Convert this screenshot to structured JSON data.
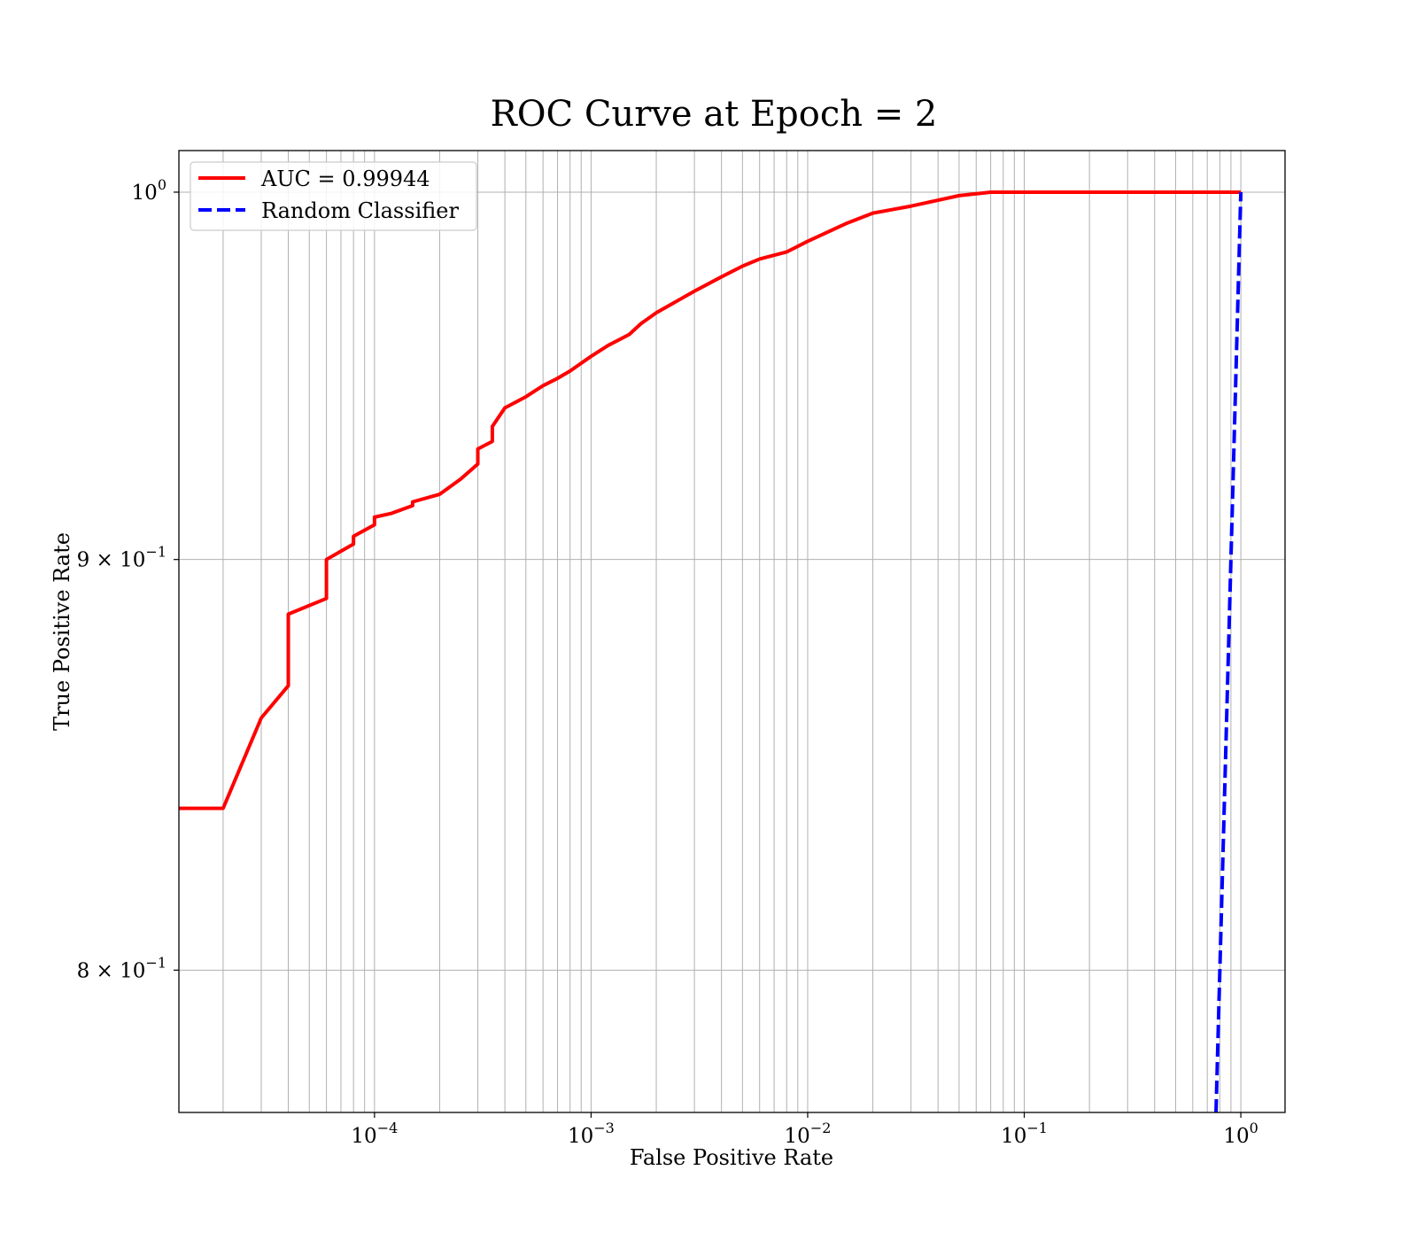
{
  "chart_data": {
    "type": "line",
    "title": "ROC Curve at Epoch = 2",
    "xlabel": "False Positive Rate",
    "ylabel": "True Positive Rate",
    "xscale": "log",
    "yscale": "log",
    "xlim": [
      1.25e-05,
      1.6
    ],
    "ylim": [
      0.768,
      1.012
    ],
    "grid": true,
    "legend_position": "upper-left",
    "x_ticks": [
      {
        "value": 0.0001,
        "base": "10",
        "exp": "−4"
      },
      {
        "value": 0.001,
        "base": "10",
        "exp": "−3"
      },
      {
        "value": 0.01,
        "base": "10",
        "exp": "−2"
      },
      {
        "value": 0.1,
        "base": "10",
        "exp": "−1"
      },
      {
        "value": 1,
        "base": "10",
        "exp": "0"
      }
    ],
    "y_ticks": [
      {
        "value": 0.8,
        "base": "8 × 10",
        "exp": "−1"
      },
      {
        "value": 0.9,
        "base": "9 × 10",
        "exp": "−1"
      },
      {
        "value": 1.0,
        "base": "10",
        "exp": "0"
      }
    ],
    "series": [
      {
        "name": "AUC = 0.99944",
        "color": "#ff0000",
        "style": "solid",
        "x": [
          1.25e-05,
          2e-05,
          3e-05,
          4e-05,
          4e-05,
          6e-05,
          6e-05,
          8e-05,
          8e-05,
          0.0001,
          0.0001,
          0.00012,
          0.00015,
          0.00015,
          0.0002,
          0.00025,
          0.0003,
          0.0003,
          0.00035,
          0.00035,
          0.0004,
          0.0005,
          0.0006,
          0.0007,
          0.0008,
          0.001,
          0.0012,
          0.0015,
          0.0017,
          0.002,
          0.003,
          0.004,
          0.005,
          0.006,
          0.008,
          0.01,
          0.015,
          0.02,
          0.03,
          0.05,
          0.07,
          0.1,
          0.2,
          0.5,
          1.0
        ],
        "y": [
          0.838,
          0.838,
          0.86,
          0.868,
          0.886,
          0.89,
          0.9,
          0.904,
          0.906,
          0.909,
          0.911,
          0.912,
          0.914,
          0.915,
          0.917,
          0.921,
          0.925,
          0.929,
          0.931,
          0.935,
          0.94,
          0.943,
          0.946,
          0.948,
          0.95,
          0.954,
          0.957,
          0.96,
          0.963,
          0.966,
          0.972,
          0.976,
          0.979,
          0.981,
          0.983,
          0.986,
          0.991,
          0.994,
          0.996,
          0.999,
          1.0,
          1.0,
          1.0,
          1.0,
          1.0
        ]
      },
      {
        "name": "Random Classifier",
        "color": "#0000ff",
        "style": "dashed",
        "x": [
          0.768,
          1.0
        ],
        "y": [
          0.768,
          1.0
        ]
      }
    ]
  }
}
